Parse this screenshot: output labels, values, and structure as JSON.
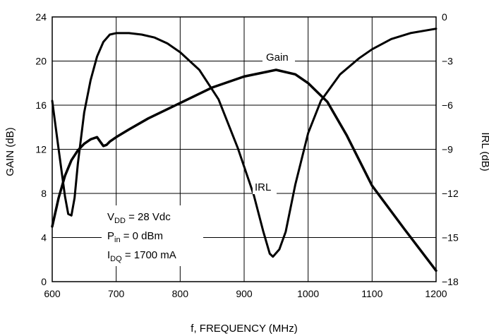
{
  "chart_data": {
    "type": "line",
    "xlabel": "f, FREQUENCY (MHz)",
    "ylabel": "GAIN (dB)",
    "y2label": "IRL (dB)",
    "xlim": [
      600,
      1200
    ],
    "ylim": [
      0,
      24
    ],
    "y2lim": [
      -18,
      0
    ],
    "xticks": [
      600,
      700,
      800,
      900,
      1000,
      1100,
      1200
    ],
    "yticks": [
      0,
      4,
      8,
      12,
      16,
      20,
      24
    ],
    "y2ticks": [
      0,
      -3,
      -6,
      -9,
      -12,
      -15,
      -18
    ],
    "y2ticklabels": [
      "0",
      "−3",
      "−6",
      "−9",
      "−12",
      "−15",
      "−18"
    ],
    "grid": true,
    "series": [
      {
        "name": "Gain",
        "axis": "left",
        "x": [
          600,
          610,
          620,
          630,
          640,
          650,
          660,
          670,
          675,
          680,
          685,
          690,
          700,
          720,
          750,
          800,
          850,
          900,
          950,
          980,
          1000,
          1030,
          1060,
          1100,
          1150,
          1200
        ],
        "y": [
          5.0,
          7.6,
          9.6,
          11.0,
          11.9,
          12.5,
          12.9,
          13.1,
          12.7,
          12.3,
          12.4,
          12.7,
          13.1,
          13.8,
          14.8,
          16.2,
          17.6,
          18.6,
          19.2,
          18.8,
          18.0,
          16.3,
          13.3,
          8.7,
          4.8,
          1.0
        ]
      },
      {
        "name": "IRL",
        "axis": "right",
        "x": [
          600,
          610,
          620,
          625,
          630,
          635,
          640,
          650,
          660,
          670,
          680,
          690,
          700,
          720,
          740,
          760,
          780,
          800,
          830,
          860,
          890,
          915,
          930,
          940,
          945,
          955,
          965,
          980,
          1000,
          1020,
          1050,
          1080,
          1100,
          1130,
          1160,
          1200
        ],
        "y": [
          -5.7,
          -9.0,
          -12.2,
          -13.4,
          -13.5,
          -12.3,
          -10.0,
          -6.5,
          -4.3,
          -2.7,
          -1.7,
          -1.2,
          -1.1,
          -1.1,
          -1.2,
          -1.4,
          -1.8,
          -2.4,
          -3.6,
          -5.6,
          -8.9,
          -12.1,
          -14.6,
          -16.1,
          -16.3,
          -15.8,
          -14.6,
          -11.4,
          -7.9,
          -5.7,
          -3.9,
          -2.8,
          -2.2,
          -1.5,
          -1.1,
          -0.8
        ]
      }
    ],
    "annotations": {
      "gain_label": "Gain",
      "irl_label": "IRL",
      "cond1_main": "V",
      "cond1_sub": "DD",
      "cond1_rest": " = 28 Vdc",
      "cond2_main": "P",
      "cond2_sub": "in",
      "cond2_rest": " = 0 dBm",
      "cond3_main": "I",
      "cond3_sub": "DQ",
      "cond3_rest": " = 1700 mA"
    }
  }
}
